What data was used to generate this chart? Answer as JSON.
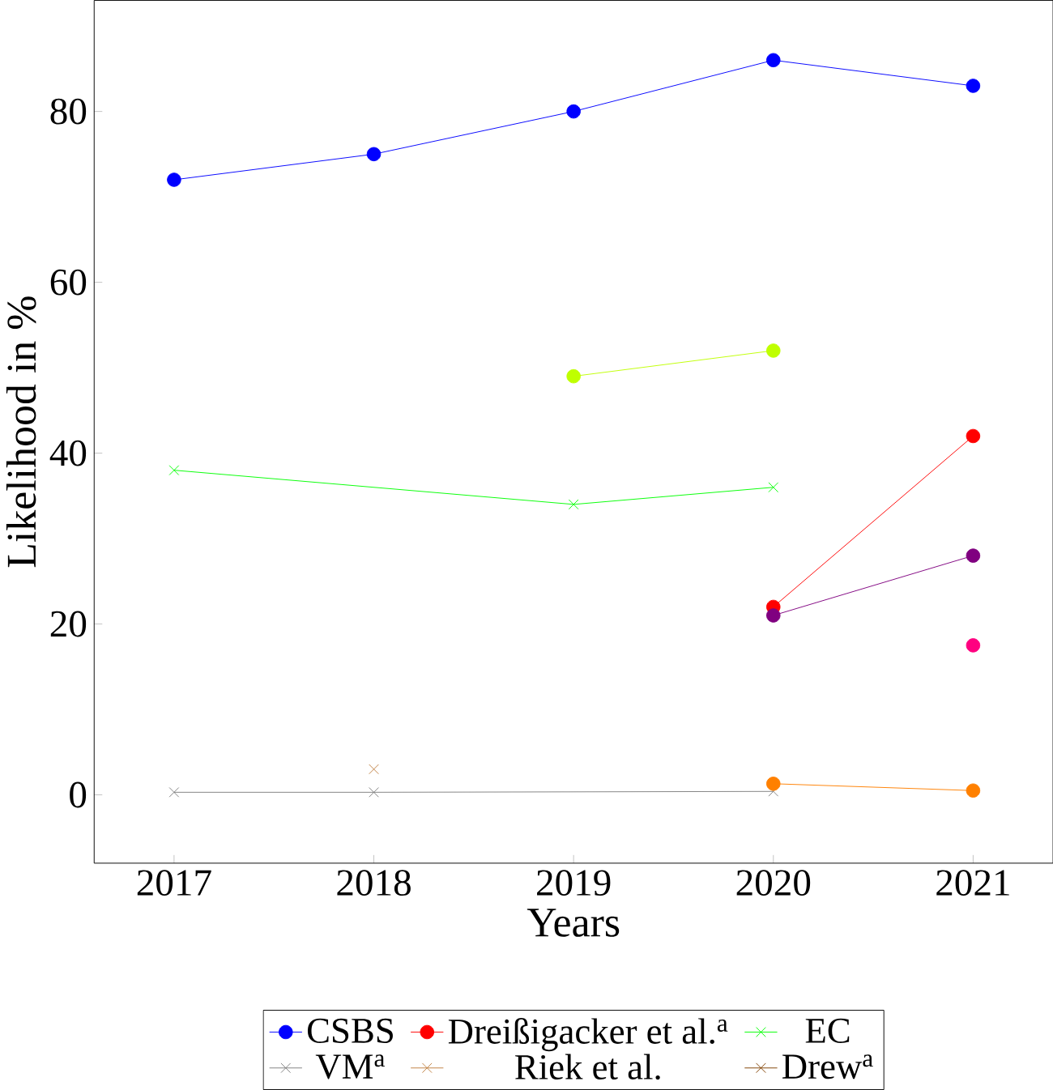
{
  "chart_data": {
    "type": "line",
    "xlabel": "Years",
    "ylabel": "Likelihood in %",
    "xlim": [
      2016.6,
      2021.4
    ],
    "ylim": [
      -8,
      93
    ],
    "xticks": [
      2017,
      2018,
      2019,
      2020,
      2021
    ],
    "yticks": [
      0,
      20,
      40,
      60,
      80
    ],
    "legend": "bottom",
    "grid": false,
    "series": [
      {
        "name": "CSBS",
        "color": "#0000ff",
        "marker": "circle",
        "x": [
          2017,
          2018,
          2019,
          2020,
          2021
        ],
        "values": [
          72,
          75,
          80,
          86,
          83
        ]
      },
      {
        "name": "Dreißigacker et al.$^{a}$",
        "color": "#ff0000",
        "marker": "circle",
        "x": [
          2020,
          2021
        ],
        "values": [
          22,
          42
        ]
      },
      {
        "name": "EC",
        "color": "#00ff00",
        "marker": "cross",
        "x": [
          2017,
          2019,
          2020
        ],
        "values": [
          38,
          34,
          36
        ]
      },
      {
        "name": "VM$^{a}$",
        "color": "#808080",
        "marker": "cross",
        "x": [
          2017,
          2018,
          2020
        ],
        "values": [
          0.3,
          0.3,
          0.4
        ]
      },
      {
        "name": "Riek et al.",
        "color": "#bf8040",
        "marker": "cross",
        "x": [
          2018
        ],
        "values": [
          3
        ]
      },
      {
        "color": "#bfff00",
        "marker": "circle",
        "x": [
          2019,
          2020
        ],
        "values": [
          49,
          52
        ]
      },
      {
        "color": "#ff0080",
        "marker": "circle",
        "x": [
          2021
        ],
        "values": [
          17.5
        ]
      },
      {
        "color": "#ff8000",
        "marker": "circle",
        "x": [
          2020,
          2021
        ],
        "values": [
          1.3,
          0.5
        ]
      },
      {
        "color": "#800080",
        "marker": "circle",
        "x": [
          2020,
          2021
        ],
        "values": [
          21,
          28
        ]
      },
      {
        "name": "Drew$^{a}$",
        "color": "#804000",
        "marker": "cross"
      }
    ]
  }
}
